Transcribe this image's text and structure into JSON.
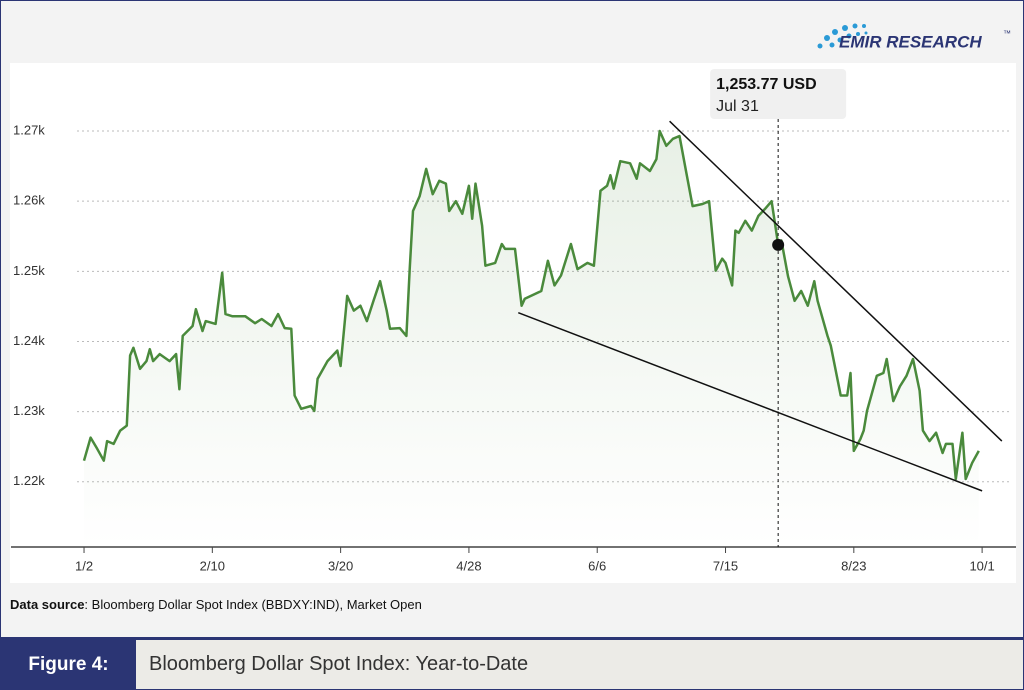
{
  "chart_data": {
    "type": "line",
    "color": "#4a8a3c",
    "x": [
      2,
      4,
      6,
      8,
      9,
      11,
      13,
      15,
      16,
      17,
      19,
      21,
      22,
      23,
      25,
      28,
      30,
      31,
      32,
      35,
      36,
      38,
      39,
      42,
      44,
      45,
      47,
      51,
      54,
      56,
      59,
      61,
      63,
      65,
      66,
      68,
      71,
      72,
      73,
      76,
      79,
      80,
      82,
      84,
      86,
      88,
      90,
      92,
      94,
      95,
      98,
      100,
      101,
      102,
      104,
      106,
      108,
      110,
      112,
      113,
      115,
      117,
      119,
      120,
      121,
      123,
      124,
      127,
      129,
      130,
      133,
      135,
      136,
      141,
      143,
      145,
      147,
      150,
      152,
      155,
      157,
      159,
      161,
      162,
      163,
      165,
      168,
      170,
      171,
      174,
      176,
      177,
      179,
      181,
      183,
      185,
      187,
      190,
      192,
      194,
      196,
      197,
      199,
      200,
      201,
      203,
      205,
      207,
      209,
      211,
      212,
      213,
      214,
      216,
      218,
      220,
      222,
      224,
      225,
      228,
      229,
      232,
      234,
      235,
      236,
      238,
      239,
      240,
      243,
      245,
      246,
      248,
      250,
      252,
      254,
      256,
      257,
      259,
      261,
      263,
      264,
      266,
      267,
      269,
      270,
      272,
      274
    ],
    "values": [
      1223.0,
      1226.3,
      1224.7,
      1223.0,
      1225.8,
      1225.4,
      1227.3,
      1228.0,
      1238.0,
      1239.1,
      1236.1,
      1237.2,
      1238.9,
      1237.2,
      1238.2,
      1237.2,
      1238.2,
      1233.2,
      1240.8,
      1242.2,
      1244.6,
      1241.5,
      1242.9,
      1242.5,
      1249.8,
      1243.9,
      1243.6,
      1243.6,
      1242.6,
      1243.2,
      1242.2,
      1243.9,
      1241.9,
      1241.8,
      1232.3,
      1230.4,
      1230.8,
      1230.1,
      1234.7,
      1237.2,
      1238.7,
      1236.5,
      1246.5,
      1244.4,
      1245.1,
      1242.9,
      1245.8,
      1248.6,
      1244.4,
      1241.8,
      1241.9,
      1240.8,
      1250.3,
      1258.6,
      1260.7,
      1264.6,
      1261.0,
      1262.9,
      1262.5,
      1258.6,
      1260.0,
      1258.2,
      1262.2,
      1257.5,
      1262.5,
      1256.5,
      1250.8,
      1251.2,
      1253.9,
      1253.2,
      1253.2,
      1245.1,
      1246.1,
      1247.2,
      1251.5,
      1248.0,
      1249.4,
      1253.9,
      1250.3,
      1251.2,
      1250.8,
      1261.5,
      1262.2,
      1263.7,
      1261.8,
      1265.7,
      1265.4,
      1263.2,
      1265.4,
      1264.3,
      1266.0,
      1270.0,
      1267.9,
      1268.9,
      1269.3,
      1264.3,
      1259.3,
      1259.6,
      1260.0,
      1250.1,
      1251.8,
      1251.2,
      1248.0,
      1255.8,
      1255.5,
      1257.2,
      1255.8,
      1257.9,
      1258.9,
      1260.0,
      1256.9,
      1253.77,
      1254.4,
      1249.3,
      1245.8,
      1247.2,
      1245.1,
      1248.6,
      1245.8,
      1240.8,
      1239.4,
      1232.3,
      1232.3,
      1235.5,
      1224.4,
      1226.1,
      1227.3,
      1230.1,
      1235.1,
      1235.5,
      1237.5,
      1231.5,
      1233.6,
      1235.1,
      1237.5,
      1233.0,
      1227.3,
      1225.8,
      1227.0,
      1224.1,
      1225.4,
      1225.4,
      1220.4,
      1227.0,
      1220.4,
      1222.7,
      1224.4
    ],
    "xlim": [
      -20.2,
      285.3
    ],
    "xticks": [
      {
        "value": 2,
        "label": "1/2"
      },
      {
        "value": 41,
        "label": "2/10"
      },
      {
        "value": 80,
        "label": "3/20"
      },
      {
        "value": 119,
        "label": "4/28"
      },
      {
        "value": 158,
        "label": "6/6"
      },
      {
        "value": 197,
        "label": "7/15"
      },
      {
        "value": 236,
        "label": "8/23"
      },
      {
        "value": 275,
        "label": "10/1"
      }
    ],
    "ylim": [
      1210.7,
      1279.7
    ],
    "yticks": [
      {
        "value": 1220,
        "label": "1.22k"
      },
      {
        "value": 1230,
        "label": "1.23k"
      },
      {
        "value": 1240,
        "label": "1.24k"
      },
      {
        "value": 1250,
        "label": "1.25k"
      },
      {
        "value": 1260,
        "label": "1.26k"
      },
      {
        "value": 1270,
        "label": "1.27k"
      }
    ],
    "grid": true,
    "tooltip": {
      "x": 213,
      "value": 1253.77,
      "label": "1,253.77 USD",
      "date": "Jul 31"
    },
    "trend_lines": [
      {
        "x": [
          180,
          281
        ],
        "values": [
          1271.4,
          1225.8
        ]
      },
      {
        "x": [
          134,
          275
        ],
        "values": [
          1244.1,
          1218.7
        ]
      }
    ],
    "trend_color": "#111111"
  },
  "logo": {
    "name": "EMIR RESEARCH",
    "mark": "™"
  },
  "source": {
    "label": "Data source",
    "text": ": Bloomberg Dollar Spot Index (BBDXY:IND), Market Open"
  },
  "figure": {
    "number": "Figure 4:",
    "caption": "Bloomberg Dollar Spot Index: Year-to-Date"
  }
}
